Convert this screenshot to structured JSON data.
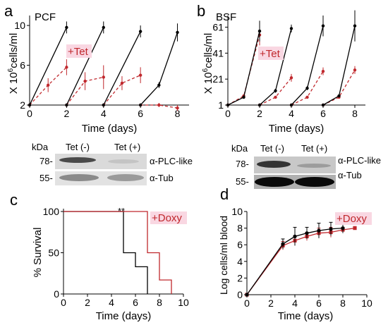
{
  "figure": {
    "panel_a": {
      "letter": "a",
      "label": "PCF",
      "ylabel_prefix": "X 10",
      "ylabel_exp": "6",
      "ylabel_suffix": "cells/ml",
      "xlabel": "Time (days)",
      "annotation": "+Tet",
      "blot": {
        "kda_header": "kDa",
        "lane1": "Tet (-)",
        "lane2": "Tet (+)",
        "mw_top": "78-",
        "mw_bottom": "55-",
        "label_top": "α-PLC-like",
        "label_bottom": "α-Tub"
      }
    },
    "panel_b": {
      "letter": "b",
      "label": "BSF",
      "ylabel_prefix": "X 10",
      "ylabel_exp": "6",
      "ylabel_suffix": "cells/ml",
      "xlabel": "Time (days)",
      "annotation": "+Tet",
      "blot": {
        "kda_header": "kDa",
        "lane1": "Tet (-)",
        "lane2": "Tet (+)",
        "mw_top": "78-",
        "mw_bottom": "55-",
        "label_top": "α-PLC-like",
        "label_bottom": "α-Tub"
      }
    },
    "panel_c": {
      "letter": "c",
      "ylabel": "% Survival",
      "xlabel": "Time (days)",
      "annotation": "+Doxy",
      "significance": "**"
    },
    "panel_d": {
      "letter": "d",
      "ylabel": "Log cells/ml blood",
      "xlabel": "Time (days)",
      "annotation": "+Doxy"
    }
  },
  "colors": {
    "control": "#000000",
    "treated": "#c0282d",
    "annotation_bg": "#f9d7e2"
  },
  "chart_data": [
    {
      "id": "a",
      "type": "line",
      "xlabel": "Time (days)",
      "ylabel": "X 10^6 cells/ml",
      "xlim": [
        0,
        8.4
      ],
      "ylim": [
        2,
        11
      ],
      "xticks": [
        0,
        2,
        4,
        6,
        8
      ],
      "yticks": [
        2,
        6,
        10
      ],
      "control_segments": [
        {
          "x": [
            0,
            2
          ],
          "y": [
            2,
            9.8
          ],
          "err": [
            0,
            0.6
          ]
        },
        {
          "x": [
            2,
            4
          ],
          "y": [
            2,
            9.8
          ],
          "err": [
            0,
            0.6
          ]
        },
        {
          "x": [
            4,
            6
          ],
          "y": [
            2,
            9.4
          ],
          "err": [
            0,
            0.6
          ]
        },
        {
          "x": [
            6,
            7,
            8
          ],
          "y": [
            2,
            4,
            9.3
          ],
          "err": [
            0,
            0.3,
            0.9
          ]
        }
      ],
      "treated_segments": [
        {
          "x": [
            0,
            1,
            2
          ],
          "y": [
            2,
            4,
            5.8
          ],
          "err": [
            0,
            0.7,
            0.8
          ]
        },
        {
          "x": [
            2,
            3,
            4
          ],
          "y": [
            2,
            4.4,
            4.8
          ],
          "err": [
            0,
            0.9,
            1.2
          ]
        },
        {
          "x": [
            4,
            5,
            6
          ],
          "y": [
            2,
            4.2,
            5.0
          ],
          "err": [
            0,
            0.7,
            0.8
          ]
        },
        {
          "x": [
            6,
            7,
            8
          ],
          "y": [
            2,
            2.0,
            1.7
          ],
          "err": [
            0,
            0.2,
            0.3
          ]
        }
      ]
    },
    {
      "id": "b",
      "type": "line",
      "xlabel": "Time (days)",
      "ylabel": "X 10^6 cells/ml",
      "xlim": [
        0,
        8.4
      ],
      "ylim": [
        1,
        70
      ],
      "xticks": [
        0,
        2,
        4,
        6,
        8
      ],
      "yticks": [
        1,
        21,
        41,
        61
      ],
      "control_segments": [
        {
          "x": [
            0,
            1,
            2
          ],
          "y": [
            1,
            7,
            58
          ],
          "err": [
            0,
            1,
            8
          ]
        },
        {
          "x": [
            2,
            3,
            4
          ],
          "y": [
            1,
            12,
            60
          ],
          "err": [
            0,
            1.5,
            3
          ]
        },
        {
          "x": [
            4,
            5,
            6
          ],
          "y": [
            1,
            14,
            62
          ],
          "err": [
            0,
            1.5,
            8
          ]
        },
        {
          "x": [
            6,
            7,
            8
          ],
          "y": [
            1,
            8,
            62
          ],
          "err": [
            0,
            1,
            12
          ]
        }
      ],
      "treated_segments": [
        {
          "x": [
            0,
            1,
            2
          ],
          "y": [
            1,
            8,
            55
          ],
          "err": [
            0,
            1,
            8
          ]
        },
        {
          "x": [
            2,
            3,
            4
          ],
          "y": [
            1,
            7,
            22
          ],
          "err": [
            0,
            1,
            3
          ]
        },
        {
          "x": [
            4,
            5,
            6
          ],
          "y": [
            1,
            7,
            27
          ],
          "err": [
            0,
            1,
            3
          ]
        },
        {
          "x": [
            6,
            7,
            8
          ],
          "y": [
            1,
            7,
            28
          ],
          "err": [
            0,
            1,
            3
          ]
        }
      ]
    },
    {
      "id": "c",
      "type": "line",
      "xlabel": "Time (days)",
      "ylabel": "% Survival",
      "xlim": [
        0,
        10
      ],
      "ylim": [
        0,
        100
      ],
      "xticks": [
        0,
        2,
        4,
        6,
        8,
        10
      ],
      "yticks": [
        0,
        50,
        100
      ],
      "series": [
        {
          "name": "control",
          "x": [
            0,
            5,
            5,
            6,
            6,
            7,
            7
          ],
          "y": [
            100,
            100,
            50,
            50,
            33,
            33,
            0
          ]
        },
        {
          "name": "+Doxy",
          "x": [
            0,
            7,
            7,
            8,
            8,
            9,
            9
          ],
          "y": [
            100,
            100,
            50,
            50,
            17,
            17,
            0
          ]
        }
      ]
    },
    {
      "id": "d",
      "type": "line",
      "xlabel": "Time (days)",
      "ylabel": "Log cells/ml blood",
      "xlim": [
        0,
        10
      ],
      "ylim": [
        0,
        10
      ],
      "xticks": [
        0,
        2,
        4,
        6,
        8,
        10
      ],
      "yticks": [
        0,
        2,
        4,
        6,
        8,
        10
      ],
      "series": [
        {
          "name": "control",
          "x": [
            0,
            3,
            4,
            5,
            6,
            7,
            8
          ],
          "y": [
            0,
            6.1,
            7.0,
            7.4,
            7.7,
            7.9,
            8.0
          ],
          "err": [
            0,
            0.6,
            1.1,
            0.7,
            0.9,
            0.8,
            0.6
          ]
        },
        {
          "name": "+Doxy",
          "x": [
            0,
            3,
            4,
            5,
            6,
            7,
            8,
            9
          ],
          "y": [
            0,
            5.9,
            6.5,
            7.0,
            7.4,
            7.5,
            7.8,
            8.0
          ],
          "err": [
            0,
            0.5,
            0.6,
            0.5,
            0.6,
            0.6,
            0.3,
            0.2
          ]
        }
      ]
    }
  ]
}
